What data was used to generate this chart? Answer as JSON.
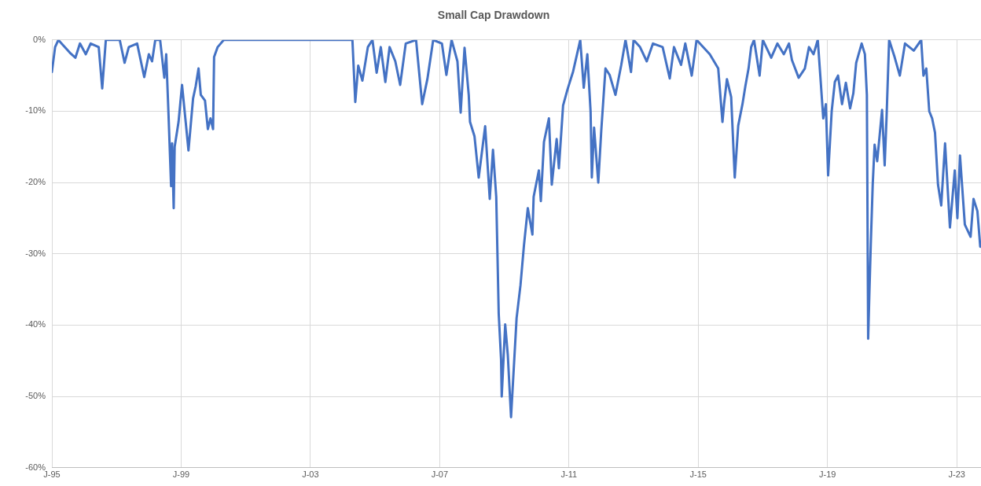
{
  "chart_data": {
    "type": "line",
    "title": "Small Cap Drawdown",
    "x": [
      "1995-01-01",
      "1995-02-07",
      "1995-03-13",
      "1995-07-22",
      "1995-09-23",
      "1995-11-14",
      "1996-01-19",
      "1996-03-13",
      "1996-06-13",
      "1996-07-22",
      "1996-09-02",
      "1997-02-07",
      "1997-04-01",
      "1997-05-18",
      "1997-08-21",
      "1997-11-10",
      "1998-01-01",
      "1998-02-07",
      "1998-03-13",
      "1998-05-07",
      "1998-06-24",
      "1998-07-15",
      "1998-08-10",
      "1998-09-09",
      "1998-09-20",
      "1998-10-08",
      "1998-10-19",
      "1998-12-02",
      "1999-01-11",
      "1999-02-18",
      "1999-03-23",
      "1999-05-14",
      "1999-06-13",
      "1999-07-15",
      "1999-08-10",
      "1999-09-27",
      "1999-10-29",
      "1999-11-28",
      "1999-12-27",
      "2000-01-08",
      "2000-02-18",
      "2000-04-26",
      "2004-04-19",
      "2004-05-21",
      "2004-06-24",
      "2004-08-10",
      "2004-10-11",
      "2004-12-02",
      "2005-01-19",
      "2005-03-05",
      "2005-04-26",
      "2005-06-13",
      "2005-08-17",
      "2005-10-11",
      "2005-12-13",
      "2006-04-08",
      "2006-06-16",
      "2006-08-14",
      "2006-10-19",
      "2007-01-26",
      "2007-03-16",
      "2007-05-14",
      "2007-07-19",
      "2007-08-25",
      "2007-10-08",
      "2007-11-25",
      "2007-12-09",
      "2008-01-29",
      "2008-03-16",
      "2008-05-28",
      "2008-07-19",
      "2008-08-25",
      "2008-10-01",
      "2008-10-29",
      "2008-11-25",
      "2008-12-02",
      "2009-01-11",
      "2009-02-10",
      "2009-03-16",
      "2009-05-18",
      "2009-07-01",
      "2009-08-10",
      "2009-09-23",
      "2009-11-14",
      "2009-11-28",
      "2010-01-26",
      "2010-02-18",
      "2010-03-23",
      "2010-05-18",
      "2010-06-20",
      "2010-08-14",
      "2010-09-09",
      "2010-10-26",
      "2010-12-16",
      "2011-02-18",
      "2011-05-07",
      "2011-06-16",
      "2011-07-26",
      "2011-09-02",
      "2011-09-16",
      "2011-10-11",
      "2011-11-28",
      "2012-01-01",
      "2012-02-18",
      "2012-04-04",
      "2012-06-09",
      "2012-08-14",
      "2012-10-01",
      "2012-12-02",
      "2013-01-01",
      "2013-03-13",
      "2013-05-28",
      "2013-08-07",
      "2013-11-25",
      "2014-02-14",
      "2014-04-01",
      "2014-06-20",
      "2014-08-07",
      "2014-10-19",
      "2014-12-13",
      "2015-05-10",
      "2015-08-14",
      "2015-10-01",
      "2015-10-19",
      "2015-11-21",
      "2016-01-08",
      "2016-02-18",
      "2016-03-27",
      "2016-05-14",
      "2016-06-16",
      "2016-07-22",
      "2016-08-21",
      "2016-09-23",
      "2016-11-25",
      "2017-01-01",
      "2017-04-04",
      "2017-06-13",
      "2017-08-25",
      "2017-10-22",
      "2017-11-25",
      "2018-02-10",
      "2018-04-19",
      "2018-06-05",
      "2018-07-26",
      "2018-09-13",
      "2018-10-11",
      "2018-11-14",
      "2018-12-13",
      "2019-01-08",
      "2019-02-18",
      "2019-03-23",
      "2019-04-29",
      "2019-06-13",
      "2019-07-26",
      "2019-09-13",
      "2019-10-19",
      "2019-11-21",
      "2020-01-22",
      "2020-02-28",
      "2020-03-20",
      "2020-04-04",
      "2020-04-19",
      "2020-05-03",
      "2020-05-25",
      "2020-06-16",
      "2020-07-15",
      "2020-09-09",
      "2020-10-08",
      "2020-10-29",
      "2020-11-28",
      "2021-01-29",
      "2021-03-27",
      "2021-05-25",
      "2021-09-02",
      "2021-11-25",
      "2021-12-20",
      "2022-01-22",
      "2022-02-25",
      "2022-03-27",
      "2022-04-29",
      "2022-06-02",
      "2022-07-08",
      "2022-08-21",
      "2022-10-15",
      "2022-12-09",
      "2023-01-08",
      "2023-02-07",
      "2023-04-01",
      "2023-06-05",
      "2023-07-08",
      "2023-08-21",
      "2023-09-23"
    ],
    "series": [
      {
        "color": "#4472c4",
        "values": [
          -4.5,
          -1,
          0,
          -1.8,
          -2.5,
          -0.5,
          -2,
          -0.5,
          -1,
          -6.8,
          0,
          0,
          -3.2,
          -1,
          -0.5,
          -5.2,
          -2,
          -3,
          0,
          0,
          -5.3,
          -2,
          -10.3,
          -20.5,
          -14.5,
          -23.6,
          -15,
          -11.5,
          -6.3,
          -11,
          -15.5,
          -8.2,
          -6.5,
          -4,
          -7.7,
          -8.5,
          -12.5,
          -11,
          -12.5,
          -2.4,
          -1,
          0,
          0,
          -8.7,
          -3.6,
          -5.7,
          -1,
          0,
          -4.6,
          -1,
          -5.9,
          -1,
          -3,
          -6.3,
          -0.5,
          0,
          -9,
          -5.5,
          0,
          -0.5,
          -4.9,
          0,
          -3,
          -10.2,
          -1.1,
          -7.7,
          -11.5,
          -13.5,
          -19.3,
          -12.1,
          -22.3,
          -15.4,
          -22,
          -38.4,
          -44.8,
          -50,
          -39.9,
          -44.2,
          -52.9,
          -39,
          -34.4,
          -28.8,
          -23.6,
          -27.3,
          -22,
          -18.3,
          -22.6,
          -14.3,
          -11,
          -20.3,
          -13.9,
          -18,
          -9.2,
          -6.9,
          -4.4,
          0,
          -6.7,
          -2,
          -10,
          -19.3,
          -12.3,
          -20,
          -12.7,
          -4,
          -4.9,
          -7.7,
          -3.5,
          0,
          -4.5,
          0,
          -1,
          -3,
          -0.5,
          -1,
          -5.4,
          -1,
          -3.5,
          -0.5,
          -5,
          0,
          -2,
          -4,
          -11.5,
          -9,
          -5.5,
          -8,
          -19.3,
          -12,
          -9,
          -6.5,
          -4,
          -1,
          0,
          -5,
          0,
          -2.5,
          -0.5,
          -2,
          -0.5,
          -2.8,
          -5.3,
          -4,
          -1,
          -2,
          0,
          -5,
          -11,
          -9,
          -19,
          -10,
          -5.9,
          -5,
          -9,
          -6,
          -9.6,
          -7.5,
          -3.2,
          -0.5,
          -2,
          -7.7,
          -41.9,
          -35,
          -28.8,
          -20.3,
          -14.7,
          -17,
          -9.8,
          -17.6,
          -11,
          0,
          -2.4,
          -5,
          -0.5,
          -1.5,
          0,
          -5,
          -4,
          -10,
          -11,
          -13,
          -20.3,
          -23.2,
          -14.5,
          -26.3,
          -18.3,
          -25,
          -16.2,
          -25.9,
          -27.6,
          -22.3,
          -24,
          -29
        ]
      }
    ],
    "xlim": [
      "1995-01",
      "2023-10"
    ],
    "xticks": [
      {
        "value": "1995-01",
        "label": "J-95"
      },
      {
        "value": "1999-01",
        "label": "J-99"
      },
      {
        "value": "2003-01",
        "label": "J-03"
      },
      {
        "value": "2007-01",
        "label": "J-07"
      },
      {
        "value": "2011-01",
        "label": "J-11"
      },
      {
        "value": "2015-01",
        "label": "J-15"
      },
      {
        "value": "2019-01",
        "label": "J-19"
      },
      {
        "value": "2023-01",
        "label": "J-23"
      }
    ],
    "ylim": [
      -60,
      0
    ],
    "yticks": [
      {
        "value": -60,
        "label": "-60%"
      },
      {
        "value": -50,
        "label": "-50%"
      },
      {
        "value": -40,
        "label": "-40%"
      },
      {
        "value": -30,
        "label": "-30%"
      },
      {
        "value": -20,
        "label": "-20%"
      },
      {
        "value": -10,
        "label": "-10%"
      },
      {
        "value": 0,
        "label": "0%"
      }
    ],
    "grid": true,
    "legend": false,
    "marker": "none",
    "line_style": "solid"
  }
}
